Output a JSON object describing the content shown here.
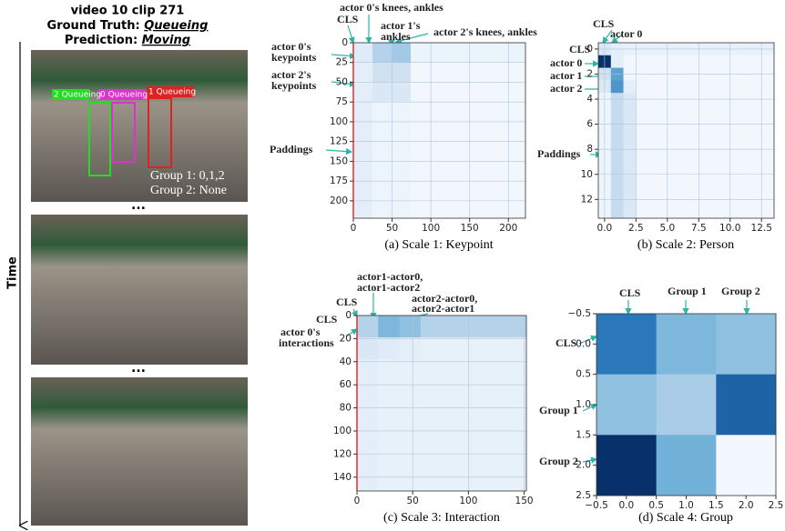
{
  "video": {
    "title": "video 10 clip 271",
    "ground_truth_label": "Ground Truth:",
    "ground_truth": "Queueing",
    "prediction_label": "Prediction:",
    "prediction": "Moving",
    "time_label": "Time",
    "ellipsis": [
      "...",
      "..."
    ],
    "boxes": [
      "2 Queueing",
      "0 Queueing",
      "1 Queueing"
    ],
    "groups": [
      "Group 1: 0,1,2",
      "Group 2: None"
    ]
  },
  "chart_data": [
    {
      "type": "heatmap",
      "caption": "(a) Scale 1: Keypoint",
      "colormap": [
        "#f7fbff",
        "#c6dbef",
        "#6baed6",
        "#2171b5",
        "#08306b"
      ],
      "xlim": [
        0,
        222
      ],
      "ylim": [
        0,
        222
      ],
      "xticks": [
        0,
        50,
        100,
        150,
        200
      ],
      "yticks": [
        0,
        25,
        50,
        75,
        100,
        125,
        150,
        175,
        200
      ],
      "grid": true,
      "annotations": [
        "CLS",
        "actor 0's knees, ankles",
        "actor 1's",
        "ankles",
        "actor 2's knees, ankles",
        "actor 0's",
        "keypoints",
        "actor 2's",
        "keypoints",
        "Paddings"
      ],
      "values": [
        [
          0.12,
          0.3,
          0.35,
          0.06,
          0.06,
          0.06,
          0.06,
          0.06,
          0.06
        ],
        [
          0.1,
          0.2,
          0.2,
          0.03,
          0.03,
          0.03,
          0.03,
          0.03,
          0.03
        ],
        [
          0.1,
          0.15,
          0.15,
          0.03,
          0.03,
          0.03,
          0.03,
          0.03,
          0.03
        ],
        [
          0.1,
          0.05,
          0.05,
          0.03,
          0.03,
          0.03,
          0.03,
          0.03,
          0.03
        ],
        [
          0.1,
          0.05,
          0.05,
          0.03,
          0.03,
          0.03,
          0.03,
          0.03,
          0.03
        ],
        [
          0.1,
          0.05,
          0.05,
          0.03,
          0.03,
          0.03,
          0.03,
          0.03,
          0.03
        ],
        [
          0.1,
          0.05,
          0.05,
          0.03,
          0.03,
          0.03,
          0.03,
          0.03,
          0.03
        ],
        [
          0.1,
          0.05,
          0.05,
          0.03,
          0.03,
          0.03,
          0.03,
          0.03,
          0.03
        ],
        [
          0.1,
          0.05,
          0.05,
          0.03,
          0.03,
          0.03,
          0.03,
          0.03,
          0.03
        ]
      ]
    },
    {
      "type": "heatmap",
      "caption": "(b) Scale 2: Person",
      "colormap": [
        "#f7fbff",
        "#c6dbef",
        "#6baed6",
        "#2171b5",
        "#08306b"
      ],
      "xlim": [
        -0.5,
        13.5
      ],
      "ylim": [
        -0.5,
        13.5
      ],
      "xticks": [
        {
          "value": 0,
          "label": "0.0"
        },
        {
          "value": 2.5,
          "label": "2.5"
        },
        {
          "value": 5,
          "label": "5.0"
        },
        {
          "value": 7.5,
          "label": "7.5"
        },
        {
          "value": 10,
          "label": "10.0"
        },
        {
          "value": 12.5,
          "label": "12.5"
        }
      ],
      "yticks": [
        0,
        2,
        4,
        6,
        8,
        10,
        12
      ],
      "grid": true,
      "annotations": [
        "CLS",
        "actor 0",
        "CLS",
        "actor 0",
        "actor 1",
        "actor 2",
        "Paddings"
      ],
      "values": [
        [
          0.15,
          0.1,
          0.08,
          0.08,
          0.08,
          0.08,
          0.08,
          0.08,
          0.08,
          0.08,
          0.08,
          0.08,
          0.08,
          0.08
        ],
        [
          1.0,
          0.1,
          0.03,
          0.03,
          0.03,
          0.03,
          0.03,
          0.03,
          0.03,
          0.03,
          0.03,
          0.03,
          0.03,
          0.03
        ],
        [
          0.2,
          0.55,
          0.03,
          0.03,
          0.03,
          0.03,
          0.03,
          0.03,
          0.03,
          0.03,
          0.03,
          0.03,
          0.03,
          0.03
        ],
        [
          0.15,
          0.6,
          0.1,
          0.03,
          0.03,
          0.03,
          0.03,
          0.03,
          0.03,
          0.03,
          0.03,
          0.03,
          0.03,
          0.03
        ],
        [
          0.05,
          0.25,
          0.15,
          0.03,
          0.03,
          0.03,
          0.03,
          0.03,
          0.03,
          0.03,
          0.03,
          0.03,
          0.03,
          0.03
        ],
        [
          0.05,
          0.25,
          0.15,
          0.03,
          0.03,
          0.03,
          0.03,
          0.03,
          0.03,
          0.03,
          0.03,
          0.03,
          0.03,
          0.03
        ],
        [
          0.05,
          0.25,
          0.15,
          0.03,
          0.03,
          0.03,
          0.03,
          0.03,
          0.03,
          0.03,
          0.03,
          0.03,
          0.03,
          0.03
        ],
        [
          0.05,
          0.25,
          0.15,
          0.03,
          0.03,
          0.03,
          0.03,
          0.03,
          0.03,
          0.03,
          0.03,
          0.03,
          0.03,
          0.03
        ],
        [
          0.05,
          0.25,
          0.15,
          0.03,
          0.03,
          0.03,
          0.03,
          0.03,
          0.03,
          0.03,
          0.03,
          0.03,
          0.03,
          0.03
        ],
        [
          0.05,
          0.25,
          0.15,
          0.03,
          0.03,
          0.03,
          0.03,
          0.03,
          0.03,
          0.03,
          0.03,
          0.03,
          0.03,
          0.03
        ],
        [
          0.05,
          0.25,
          0.15,
          0.03,
          0.03,
          0.03,
          0.03,
          0.03,
          0.03,
          0.03,
          0.03,
          0.03,
          0.03,
          0.03
        ],
        [
          0.05,
          0.25,
          0.15,
          0.03,
          0.03,
          0.03,
          0.03,
          0.03,
          0.03,
          0.03,
          0.03,
          0.03,
          0.03,
          0.03
        ],
        [
          0.05,
          0.25,
          0.15,
          0.03,
          0.03,
          0.03,
          0.03,
          0.03,
          0.03,
          0.03,
          0.03,
          0.03,
          0.03,
          0.03
        ],
        [
          0.05,
          0.25,
          0.15,
          0.03,
          0.03,
          0.03,
          0.03,
          0.03,
          0.03,
          0.03,
          0.03,
          0.03,
          0.03,
          0.03
        ]
      ]
    },
    {
      "type": "heatmap",
      "caption": "(c) Scale 3: Interaction",
      "colormap": [
        "#f7fbff",
        "#c6dbef",
        "#6baed6",
        "#2171b5",
        "#08306b"
      ],
      "xlim": [
        0,
        152
      ],
      "ylim": [
        0,
        152
      ],
      "xticks": [
        0,
        50,
        100,
        150
      ],
      "yticks": [
        0,
        20,
        40,
        60,
        80,
        100,
        120,
        140
      ],
      "grid": true,
      "annotations": [
        "actor1-actor0,",
        "actor1-actor2",
        "actor2-actor0,",
        "actor2-actor1",
        "CLS",
        "CLS",
        "actor 0's",
        "interactions"
      ],
      "values": [
        [
          0.3,
          0.45,
          0.4,
          0.3,
          0.3,
          0.3,
          0.3,
          0.3
        ],
        [
          0.15,
          0.12,
          0.1,
          0.08,
          0.08,
          0.08,
          0.08,
          0.08
        ],
        [
          0.1,
          0.08,
          0.08,
          0.08,
          0.08,
          0.08,
          0.08,
          0.08
        ],
        [
          0.1,
          0.08,
          0.08,
          0.08,
          0.08,
          0.08,
          0.08,
          0.08
        ],
        [
          0.1,
          0.08,
          0.08,
          0.08,
          0.08,
          0.08,
          0.08,
          0.08
        ],
        [
          0.1,
          0.08,
          0.08,
          0.08,
          0.08,
          0.08,
          0.08,
          0.08
        ],
        [
          0.1,
          0.08,
          0.08,
          0.08,
          0.08,
          0.08,
          0.08,
          0.08
        ],
        [
          0.1,
          0.08,
          0.08,
          0.08,
          0.08,
          0.08,
          0.08,
          0.08
        ]
      ]
    },
    {
      "type": "heatmap",
      "caption": "(d) Scale 4: Group",
      "colormap": [
        "#f7fbff",
        "#c6dbef",
        "#6baed6",
        "#2171b5",
        "#08306b"
      ],
      "xlim": [
        -0.5,
        2.5
      ],
      "ylim": [
        -0.5,
        2.5
      ],
      "xticks": [
        {
          "value": -0.5,
          "label": "−0.5"
        },
        {
          "value": 0,
          "label": "0.0"
        },
        {
          "value": 0.5,
          "label": "0.5"
        },
        {
          "value": 1,
          "label": "1.0"
        },
        {
          "value": 1.5,
          "label": "1.5"
        },
        {
          "value": 2,
          "label": "2.0"
        },
        {
          "value": 2.5,
          "label": "2.5"
        }
      ],
      "yticks": [
        {
          "value": -0.5,
          "label": "−0.5"
        },
        {
          "value": 0,
          "label": "0.0"
        },
        {
          "value": 0.5,
          "label": "0.5"
        },
        {
          "value": 1,
          "label": "1.0"
        },
        {
          "value": 1.5,
          "label": "1.5"
        },
        {
          "value": 2,
          "label": "2.0"
        },
        {
          "value": 2.5,
          "label": "2.5"
        }
      ],
      "grid": false,
      "annotations": [
        "CLS",
        "Group 1",
        "Group 2",
        "CLS",
        "Group 1",
        "Group 2"
      ],
      "values": [
        [
          0.72,
          0.45,
          0.4
        ],
        [
          0.4,
          0.33,
          0.8
        ],
        [
          1.0,
          0.48,
          0.02
        ]
      ]
    }
  ]
}
